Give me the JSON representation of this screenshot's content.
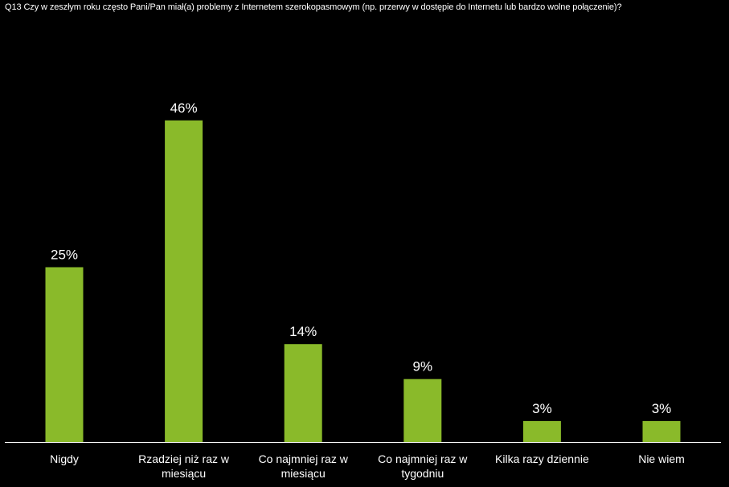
{
  "chart_data": {
    "type": "bar",
    "title": "Q13 Czy w zeszłym roku często Pani/Pan miał(a) problemy z Internetem szerokopasmowym (np. przerwy w dostępie do Internetu lub bardzo wolne połączenie)?",
    "categories": [
      "Nigdy",
      "Rzadziej niż raz w miesiącu",
      "Co najmniej raz w miesiącu",
      "Co najmniej raz w tygodniu",
      "Kilka razy dziennie",
      "Nie wiem"
    ],
    "category_lines": [
      [
        "Nigdy"
      ],
      [
        "Rzadziej niż raz w",
        "miesiącu"
      ],
      [
        "Co najmniej raz w",
        "miesiącu"
      ],
      [
        "Co najmniej raz w",
        "tygodniu"
      ],
      [
        "Kilka razy dziennie"
      ],
      [
        "Nie wiem"
      ]
    ],
    "values": [
      25,
      46,
      14,
      9,
      3,
      3
    ],
    "value_labels": [
      "25%",
      "46%",
      "14%",
      "9%",
      "3%",
      "3%"
    ],
    "unit": "%",
    "bar_color": "#8aba2a",
    "background_color": "#000000",
    "text_color": "#ffffff",
    "axis_color": "#ffffff",
    "grid": false,
    "legend": "none",
    "ylim": [
      0,
      50
    ]
  }
}
